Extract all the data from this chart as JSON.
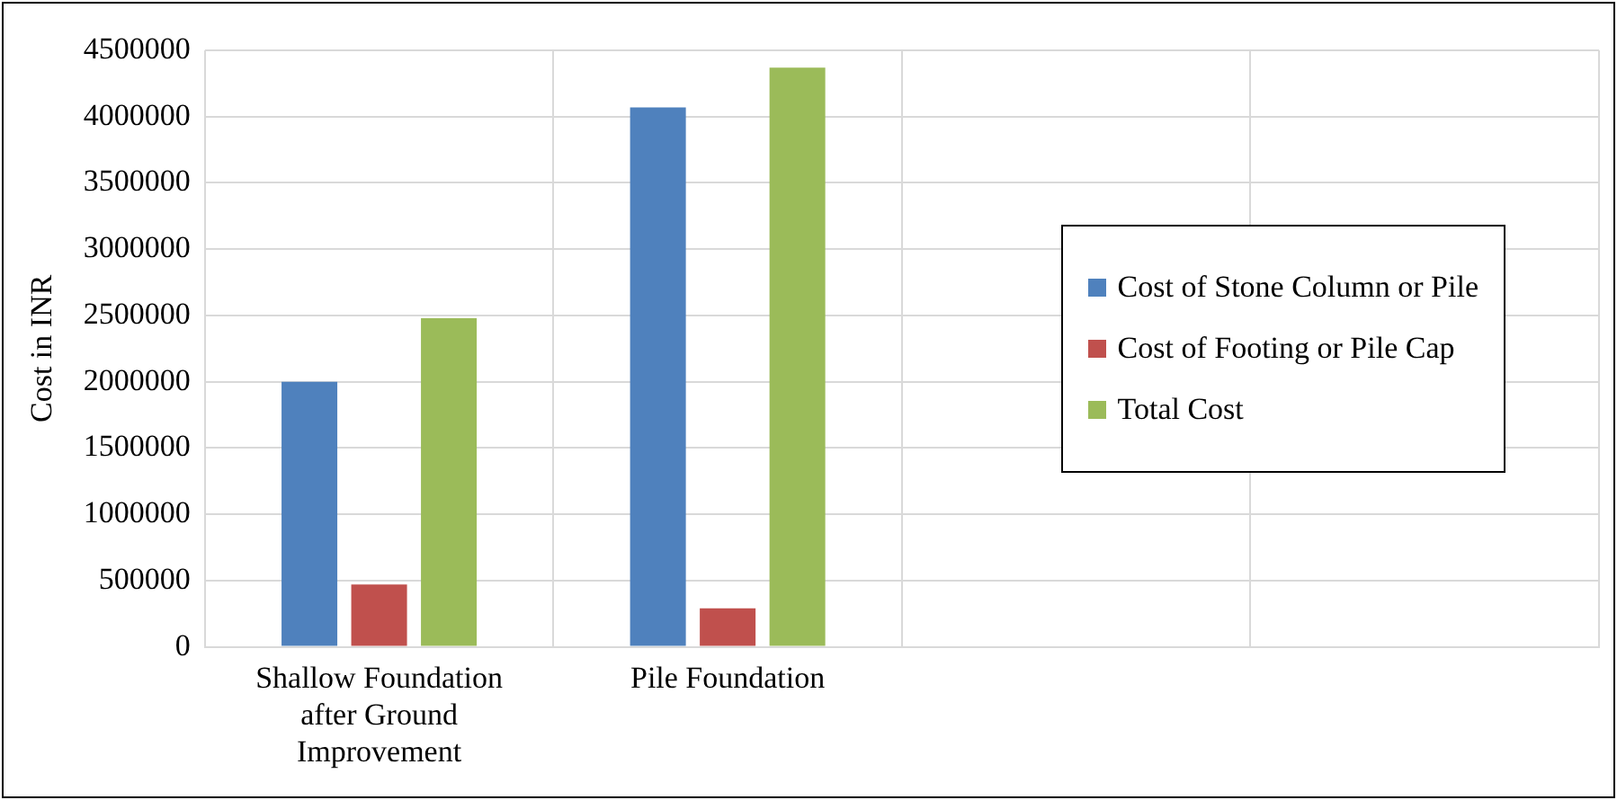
{
  "chart_data": {
    "type": "bar",
    "ylabel": "Cost in INR",
    "categories": [
      "Shallow Foundation after Ground Improvement",
      "Pile Foundation",
      null,
      null
    ],
    "series": [
      {
        "name": "Cost of Stone Column or Pile",
        "color": "#4f81bd",
        "values": [
          2000000,
          4070000,
          null,
          null
        ]
      },
      {
        "name": "Cost of Footing or Pile Cap",
        "color": "#c0504d",
        "values": [
          470000,
          290000,
          null,
          null
        ]
      },
      {
        "name": "Total Cost",
        "color": "#9bbb59",
        "values": [
          2480000,
          4370000,
          null,
          null
        ]
      }
    ],
    "ylim": [
      0,
      4500000
    ],
    "yticks": [
      0,
      500000,
      1000000,
      1500000,
      2000000,
      2500000,
      3000000,
      3500000,
      4000000,
      4500000
    ],
    "grid": true,
    "legend": "right"
  }
}
